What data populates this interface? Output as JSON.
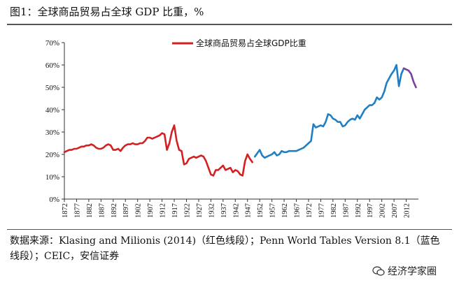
{
  "title": "图1：全球商品贸易占全球 GDP 比重，%",
  "source": "数据来源：Klasing and Milionis (2014)（红色线段）；Penn World Tables Version 8.1（蓝色线段）；CEIC，安信证券",
  "watermark": "经济学家圈",
  "colors": {
    "red": "#d42020",
    "blue": "#1f7fc4",
    "purple": "#7a3fa0"
  },
  "chart_data": {
    "type": "line",
    "title": "全球商品贸易占全球GDP比重",
    "legend": [
      "全球商品贸易占全球GDP比重"
    ],
    "legend_position": "top-center",
    "xlabel": "",
    "ylabel": "",
    "xlim": [
      1872,
      2017
    ],
    "ylim": [
      0,
      70
    ],
    "y_ticks": [
      "0%",
      "10%",
      "20%",
      "30%",
      "40%",
      "50%",
      "60%",
      "70%"
    ],
    "x_ticks": [
      "1872",
      "1877",
      "1882",
      "1887",
      "1892",
      "1897",
      "1902",
      "1907",
      "1912",
      "1917",
      "1922",
      "1927",
      "1932",
      "1937",
      "1942",
      "1947",
      "1952",
      "1957",
      "1962",
      "1967",
      "1972",
      "1977",
      "1982",
      "1987",
      "1992",
      "1997",
      "2002",
      "2007",
      "2012"
    ],
    "series": [
      {
        "name": "Klasing and Milionis (2014)",
        "color": "#d42020",
        "x": [
          1872,
          1873,
          1874,
          1875,
          1876,
          1877,
          1878,
          1879,
          1880,
          1881,
          1882,
          1883,
          1884,
          1885,
          1886,
          1887,
          1888,
          1889,
          1890,
          1891,
          1892,
          1893,
          1894,
          1895,
          1896,
          1897,
          1898,
          1899,
          1900,
          1901,
          1902,
          1903,
          1904,
          1905,
          1906,
          1907,
          1908,
          1909,
          1910,
          1911,
          1912,
          1913,
          1914,
          1915,
          1916,
          1917,
          1918,
          1919,
          1920,
          1921,
          1922,
          1923,
          1924,
          1925,
          1926,
          1927,
          1928,
          1929,
          1930,
          1931,
          1932,
          1933,
          1934,
          1935,
          1936,
          1937,
          1938,
          1939,
          1940,
          1941,
          1942,
          1943,
          1944,
          1945,
          1946,
          1947,
          1948,
          1949
        ],
        "values": [
          21,
          21.5,
          22,
          22,
          22.5,
          22.5,
          23,
          23.5,
          23.5,
          24,
          24,
          24.5,
          24,
          23,
          22.5,
          22.5,
          23,
          24,
          24.5,
          24,
          22,
          22,
          22.5,
          21.5,
          23,
          24,
          24.5,
          24.5,
          25,
          24.5,
          24.5,
          25,
          25,
          26,
          27.5,
          27.5,
          27,
          27.5,
          28,
          28.5,
          29.5,
          29,
          22,
          25,
          30,
          33,
          26,
          22,
          21.5,
          15.5,
          16,
          18,
          18.5,
          19,
          18.5,
          19,
          19.5,
          19,
          17,
          14,
          11,
          10.5,
          13,
          13,
          14,
          15,
          13,
          13.5,
          14,
          12,
          13,
          12.5,
          11,
          10.5,
          17,
          20,
          18,
          16.5
        ]
      },
      {
        "name": "Penn World Tables Version 8.1",
        "color": "#1f7fc4",
        "x": [
          1950,
          1951,
          1952,
          1953,
          1954,
          1955,
          1956,
          1957,
          1958,
          1959,
          1960,
          1961,
          1962,
          1963,
          1964,
          1965,
          1966,
          1967,
          1968,
          1969,
          1970,
          1971,
          1972,
          1973,
          1974,
          1975,
          1976,
          1977,
          1978,
          1979,
          1980,
          1981,
          1982,
          1983,
          1984,
          1985,
          1986,
          1987,
          1988,
          1989,
          1990,
          1991,
          1992,
          1993,
          1994,
          1995,
          1996,
          1997,
          1998,
          1999,
          2000,
          2001,
          2002,
          2003,
          2004,
          2005,
          2006,
          2007,
          2008,
          2009,
          2010,
          2011
        ],
        "values": [
          19,
          20.5,
          22,
          19.5,
          18.5,
          19,
          19.5,
          20,
          21,
          19.5,
          20,
          21.5,
          21,
          21,
          21.5,
          21.5,
          21.5,
          21.5,
          22,
          22.5,
          23,
          24,
          25,
          26,
          33.5,
          32,
          32.5,
          33,
          32.5,
          34.5,
          38,
          37.5,
          36,
          35.5,
          34.5,
          34.5,
          32.5,
          33,
          34.5,
          35.5,
          36,
          35.5,
          37.5,
          36,
          38,
          40,
          41,
          42,
          42,
          43,
          45.5,
          44.5,
          45.5,
          48,
          52,
          54,
          56,
          57.5,
          60,
          50.5,
          56,
          58.5
        ]
      },
      {
        "name": "CEIC",
        "color": "#7a3fa0",
        "x": [
          2011,
          2012,
          2013,
          2014,
          2015,
          2016
        ],
        "values": [
          58.5,
          58,
          57.5,
          56,
          52.5,
          50
        ]
      }
    ]
  }
}
